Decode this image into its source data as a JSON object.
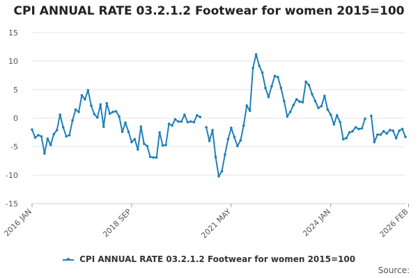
{
  "chart_data": {
    "type": "line",
    "title": "CPI ANNUAL RATE 03.2.1.2 Footwear for women 2015=100",
    "xlabel": "",
    "ylabel": "",
    "ylim": [
      -15,
      15
    ],
    "yticks": [
      15,
      10,
      5,
      0,
      -5,
      -10,
      -15
    ],
    "xticks": [
      {
        "index": 0,
        "label": "2016 JAN"
      },
      {
        "index": 32,
        "label": "2018 SEP"
      },
      {
        "index": 64,
        "label": "2021 MAY"
      },
      {
        "index": 96,
        "label": "2024 JAN"
      },
      {
        "index": 121,
        "label": "2026 FEB"
      }
    ],
    "series": [
      {
        "name": "CPI ANNUAL RATE 03.2.1.2 Footwear for women 2015=100",
        "color": "#1f7fb8",
        "values": [
          -2.0,
          -3.4,
          -3.0,
          -3.2,
          -6.2,
          -3.6,
          -4.7,
          -2.8,
          -2.1,
          0.6,
          -1.6,
          -3.2,
          -3.0,
          -0.4,
          1.5,
          1.1,
          4.0,
          3.3,
          4.9,
          2.2,
          0.7,
          0.1,
          2.4,
          -1.5,
          2.6,
          0.8,
          1.1,
          1.2,
          0.3,
          -2.4,
          -0.8,
          -2.4,
          -4.2,
          -3.7,
          -5.5,
          -1.5,
          -4.5,
          -4.9,
          -6.8,
          -6.9,
          -6.9,
          -2.5,
          -4.8,
          -4.7,
          -1.0,
          -1.3,
          -0.2,
          -0.6,
          -0.6,
          0.6,
          -0.7,
          -0.6,
          -0.7,
          0.5,
          0.2,
          null,
          -1.6,
          -4.0,
          -2.1,
          -6.8,
          -10.2,
          -9.3,
          -6.4,
          -3.7,
          -1.7,
          -3.3,
          -4.9,
          -3.9,
          -1.3,
          2.2,
          1.3,
          8.8,
          11.2,
          9.2,
          8.0,
          5.3,
          3.7,
          5.6,
          7.4,
          7.2,
          5.3,
          3.0,
          0.3,
          1.1,
          2.3,
          3.3,
          2.9,
          2.8,
          6.4,
          5.8,
          4.2,
          3.0,
          1.8,
          2.1,
          3.9,
          1.5,
          0.6,
          -1.1,
          0.5,
          -0.7,
          -3.7,
          -3.5,
          -2.5,
          -2.3,
          -1.6,
          -1.9,
          -1.8,
          -0.1,
          null,
          0.4,
          -4.2,
          -2.9,
          -2.9,
          -2.3,
          -2.7,
          -2.1,
          -2.2,
          -3.5,
          -2.2,
          -1.9,
          -3.3
        ]
      }
    ],
    "legend": "bottom-center"
  },
  "source_label": "Source:"
}
